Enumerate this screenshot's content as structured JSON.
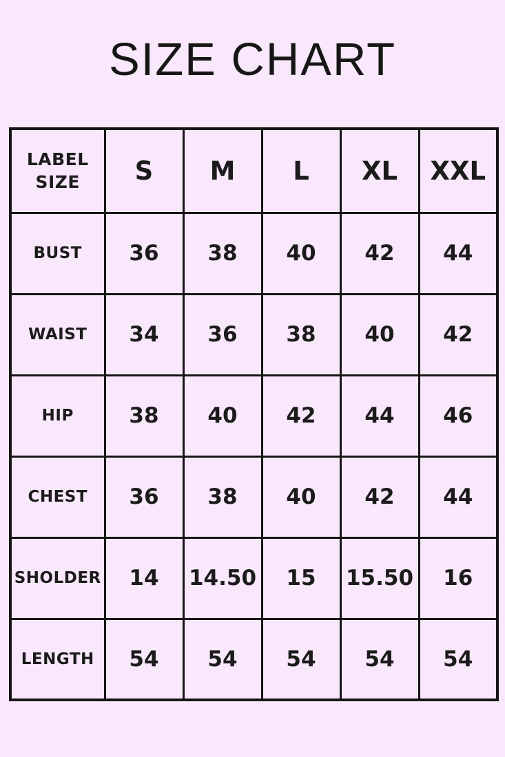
{
  "page": {
    "title": "SIZE CHART",
    "background_color": "#f9e8fb",
    "border_color": "#151515",
    "text_color": "#1b1b1b"
  },
  "table": {
    "header": {
      "label": "LABEL SIZE",
      "columns": [
        "S",
        "M",
        "L",
        "XL",
        "XXL"
      ]
    },
    "rows": [
      {
        "label": "BUST",
        "values": [
          "36",
          "38",
          "40",
          "42",
          "44"
        ]
      },
      {
        "label": "WAIST",
        "values": [
          "34",
          "36",
          "38",
          "40",
          "42"
        ]
      },
      {
        "label": "HIP",
        "values": [
          "38",
          "40",
          "42",
          "44",
          "46"
        ]
      },
      {
        "label": "CHEST",
        "values": [
          "36",
          "38",
          "40",
          "42",
          "44"
        ]
      },
      {
        "label": "SHOLDER",
        "values": [
          "14",
          "14.50",
          "15",
          "15.50",
          "16"
        ]
      },
      {
        "label": "LENGTH",
        "values": [
          "54",
          "54",
          "54",
          "54",
          "54"
        ]
      }
    ]
  },
  "chart_data": {
    "type": "table",
    "title": "SIZE CHART",
    "columns": [
      "LABEL SIZE",
      "S",
      "M",
      "L",
      "XL",
      "XXL"
    ],
    "rows": [
      [
        "BUST",
        36,
        38,
        40,
        42,
        44
      ],
      [
        "WAIST",
        34,
        36,
        38,
        40,
        42
      ],
      [
        "HIP",
        38,
        40,
        42,
        44,
        46
      ],
      [
        "CHEST",
        36,
        38,
        40,
        42,
        44
      ],
      [
        "SHOLDER",
        14,
        14.5,
        15,
        15.5,
        16
      ],
      [
        "LENGTH",
        54,
        54,
        54,
        54,
        54
      ]
    ],
    "layout": {
      "grid": "on",
      "header_row": true,
      "header_column": true
    }
  }
}
